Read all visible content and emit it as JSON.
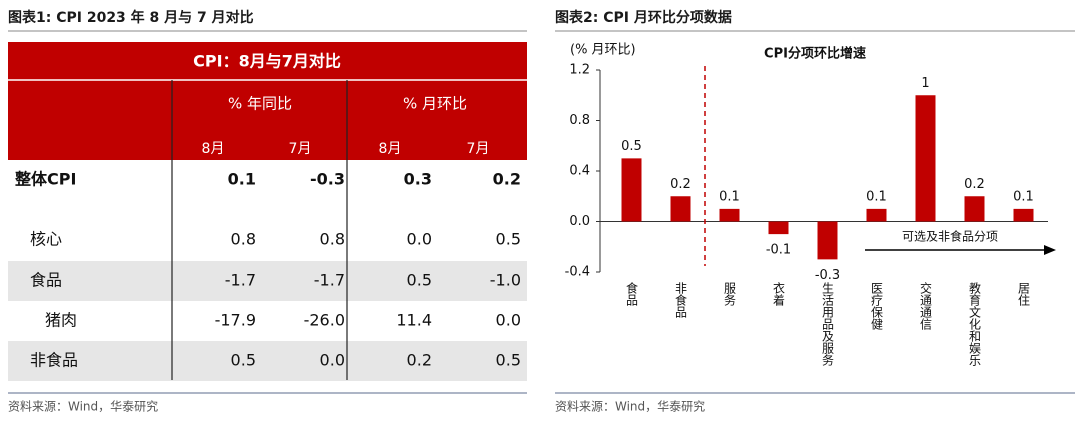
{
  "left": {
    "title": "图表1:  CPI 2023 年 8 月与 7 月对比",
    "table": {
      "title": "CPI：8月与7月对比",
      "groups": [
        "% 年同比",
        "% 月环比"
      ],
      "months": [
        "8月",
        "7月",
        "8月",
        "7月"
      ],
      "rows": [
        [
          "整体CPI",
          "0.1",
          "-0.3",
          "0.3",
          "0.2"
        ],
        [
          "核心",
          "0.8",
          "0.8",
          "0.0",
          "0.5"
        ],
        [
          "食品",
          "-1.7",
          "-1.7",
          "0.5",
          "-1.0"
        ],
        [
          "猪肉",
          "-17.9",
          "-26.0",
          "11.4",
          "0.0"
        ],
        [
          "非食品",
          "0.5",
          "0.0",
          "0.2",
          "0.5"
        ]
      ]
    },
    "source": "资料来源：Wind，华泰研究"
  },
  "right": {
    "title": "图表2:  CPI 月环比分项数据",
    "source": "资料来源：Wind，华泰研究"
  },
  "chart_data": {
    "type": "bar",
    "title": "CPI分项环比增速",
    "y_label": "(% 月环比)",
    "categories": [
      "食品",
      "非食品",
      "服务",
      "衣着",
      "生活用品及服务",
      "医疗保健",
      "交通通信",
      "教育文化和娱乐",
      "居住"
    ],
    "values": [
      0.5,
      0.2,
      0.1,
      -0.1,
      -0.3,
      0.1,
      1,
      0.2,
      0.1
    ],
    "color": "#c00000",
    "ylim": [
      -0.4,
      1.2
    ],
    "yticks": [
      -0.4,
      {
        "value": 0,
        "label": "0.0"
      },
      0.4,
      0.8,
      1.2
    ],
    "annotation": "可选及非食品分项"
  }
}
